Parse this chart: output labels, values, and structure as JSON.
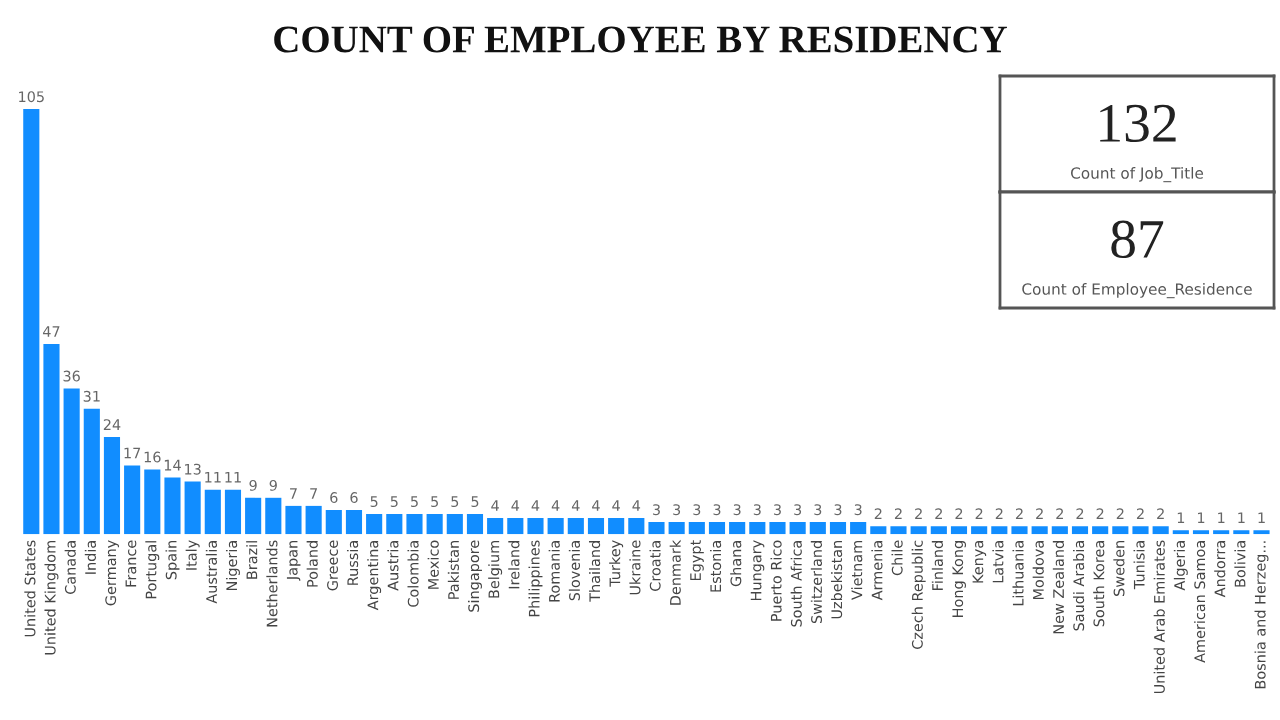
{
  "chart_data": [
    {
      "type": "bar",
      "title": "COUNT OF EMPLOYEE BY RESIDENCY",
      "color": "#118dff",
      "data_labels": true,
      "grid": false,
      "categories": [
        "United States",
        "United Kingdom",
        "Canada",
        "India",
        "Germany",
        "France",
        "Portugal",
        "Spain",
        "Italy",
        "Australia",
        "Nigeria",
        "Brazil",
        "Netherlands",
        "Japan",
        "Poland",
        "Greece",
        "Russia",
        "Argentina",
        "Austria",
        "Colombia",
        "Mexico",
        "Pakistan",
        "Singapore",
        "Belgium",
        "Ireland",
        "Philippines",
        "Romania",
        "Slovenia",
        "Thailand",
        "Turkey",
        "Ukraine",
        "Croatia",
        "Denmark",
        "Egypt",
        "Estonia",
        "Ghana",
        "Hungary",
        "Puerto Rico",
        "South Africa",
        "Switzerland",
        "Uzbekistan",
        "Vietnam",
        "Armenia",
        "Chile",
        "Czech Republic",
        "Finland",
        "Hong Kong",
        "Kenya",
        "Latvia",
        "Lithuania",
        "Moldova",
        "New Zealand",
        "Saudi Arabia",
        "South Korea",
        "Sweden",
        "Tunisia",
        "United Arab Emirates",
        "Algeria",
        "American Samoa",
        "Andorra",
        "Bolivia",
        "Bosnia and Herzeg..."
      ],
      "values": [
        105,
        47,
        36,
        31,
        24,
        17,
        16,
        14,
        13,
        11,
        11,
        9,
        9,
        7,
        7,
        6,
        6,
        5,
        5,
        5,
        5,
        5,
        5,
        4,
        4,
        4,
        4,
        4,
        4,
        4,
        4,
        3,
        3,
        3,
        3,
        3,
        3,
        3,
        3,
        3,
        3,
        3,
        2,
        2,
        2,
        2,
        2,
        2,
        2,
        2,
        2,
        2,
        2,
        2,
        2,
        2,
        2,
        1,
        1,
        1,
        1,
        1
      ]
    },
    {
      "type": "other",
      "annotations": [
        "132",
        "Count of Job_Title"
      ]
    },
    {
      "type": "other",
      "annotations": [
        "87",
        "Count of Employee_Residence"
      ]
    }
  ]
}
